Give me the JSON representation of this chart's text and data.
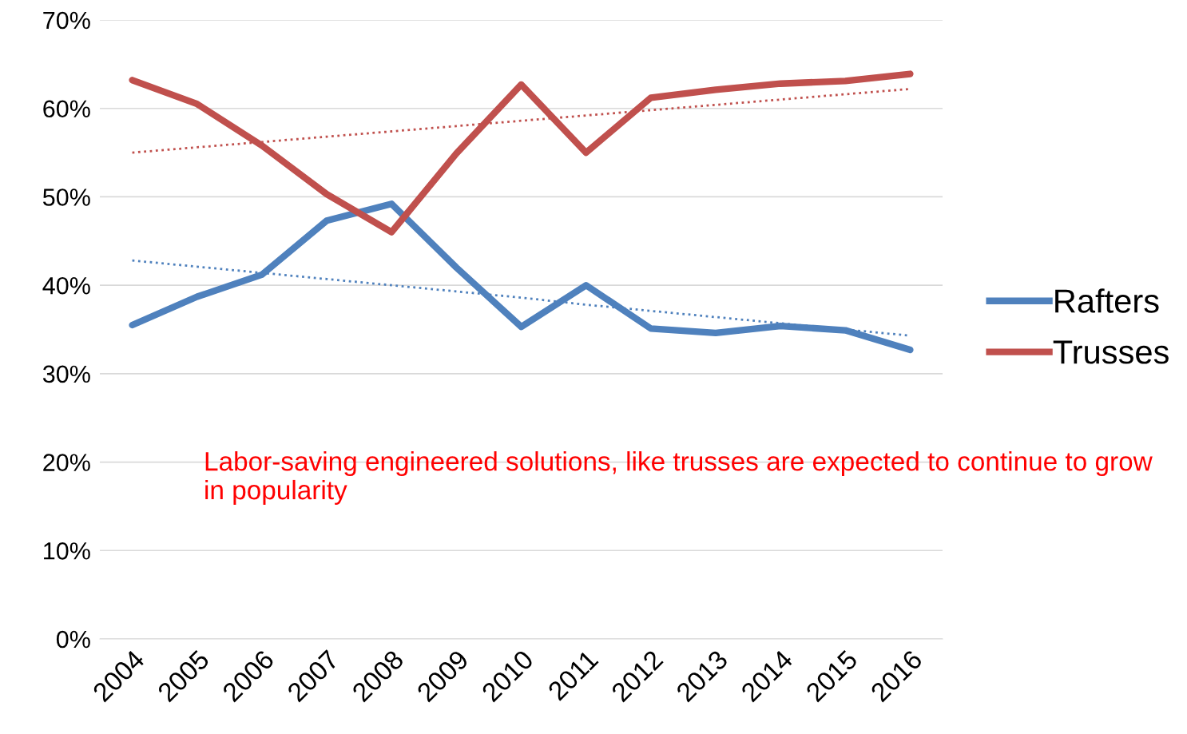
{
  "chart_data": {
    "type": "line",
    "categories": [
      "2004",
      "2005",
      "2006",
      "2007",
      "2008",
      "2009",
      "2010",
      "2011",
      "2012",
      "2013",
      "2014",
      "2015",
      "2016"
    ],
    "series": [
      {
        "name": "Rafters",
        "color": "#4f81bd",
        "values": [
          35.5,
          38.7,
          41.2,
          47.3,
          49.2,
          42.0,
          35.3,
          40.0,
          35.1,
          34.6,
          35.4,
          34.9,
          32.7
        ]
      },
      {
        "name": "Trusses",
        "color": "#c0504d",
        "values": [
          63.2,
          60.5,
          55.8,
          50.3,
          46.0,
          54.9,
          62.7,
          55.0,
          61.2,
          62.1,
          62.8,
          63.1,
          63.9
        ]
      },
      {
        "type": "line",
        "line_style": "dotted",
        "color": "#4f81bd",
        "values": [
          42.8,
          42.1,
          41.4,
          40.7,
          40.0,
          39.3,
          38.6,
          37.8,
          37.1,
          36.4,
          35.7,
          35.0,
          34.3
        ]
      },
      {
        "type": "line",
        "line_style": "dotted",
        "color": "#c0504d",
        "values": [
          55.0,
          55.6,
          56.2,
          56.8,
          57.4,
          58.0,
          58.6,
          59.2,
          59.8,
          60.4,
          61.0,
          61.6,
          62.2
        ]
      }
    ],
    "ylim": [
      0,
      70
    ],
    "yticks": [
      {
        "value": 0,
        "label": "0%"
      },
      {
        "value": 10,
        "label": "10%"
      },
      {
        "value": 20,
        "label": "20%"
      },
      {
        "value": 30,
        "label": "30%"
      },
      {
        "value": 40,
        "label": "40%"
      },
      {
        "value": 50,
        "label": "50%"
      },
      {
        "value": 60,
        "label": "60%"
      },
      {
        "value": 70,
        "label": "70%"
      }
    ],
    "grid": "y",
    "legend": "right",
    "line_style": "solid",
    "annotations": [
      "Labor-saving engineered solutions, like trusses are expected to continue to grow in popularity"
    ]
  }
}
